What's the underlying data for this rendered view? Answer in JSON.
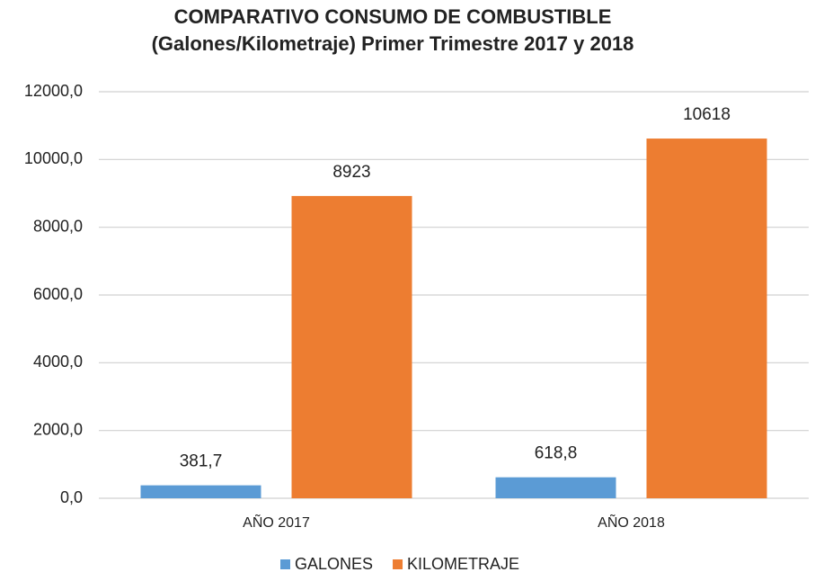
{
  "chart_data": {
    "type": "bar",
    "title": [
      "COMPARATIVO  CONSUMO DE COMBUSTIBLE",
      "(Galones/Kilometraje)  Primer Trimestre 2017 y 2018"
    ],
    "categories": [
      "AÑO 2017",
      "AÑO 2018"
    ],
    "series": [
      {
        "name": "GALONES",
        "color": "#5b9bd5",
        "values": [
          381.7,
          618.8
        ],
        "value_labels": [
          "381,7",
          "618,8"
        ]
      },
      {
        "name": "KILOMETRAJE",
        "color": "#ed7d31",
        "values": [
          8923,
          10618
        ]
      }
    ],
    "ylim": [
      0,
      12000
    ],
    "yticks": [
      {
        "value": 0,
        "label": "0,0"
      },
      {
        "value": 2000,
        "label": "2000,0"
      },
      {
        "value": 4000,
        "label": "4000,0"
      },
      {
        "value": 6000,
        "label": "6000,0"
      },
      {
        "value": 8000,
        "label": "8000,0"
      },
      {
        "value": 10000,
        "label": "10000,0"
      },
      {
        "value": 12000,
        "label": "12000,0"
      }
    ],
    "grid": true,
    "legend": "bottom"
  }
}
